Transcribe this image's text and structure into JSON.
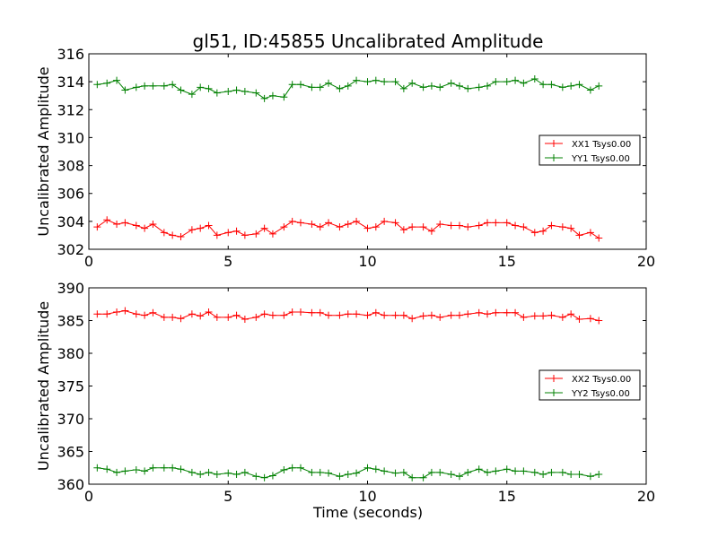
{
  "figure": {
    "title": "gl51, ID:45855 Uncalibrated Amplitude",
    "xlabel": "Time (seconds)"
  },
  "chart_data": [
    {
      "type": "line",
      "title": "gl51, ID:45855 Uncalibrated Amplitude",
      "xlabel": "",
      "ylabel": "Uncalibrated Amplitude",
      "xlim": [
        0,
        20
      ],
      "ylim": [
        302,
        316
      ],
      "xticks": [
        0,
        5,
        10,
        15,
        20
      ],
      "yticks": [
        302,
        304,
        306,
        308,
        310,
        312,
        314,
        316
      ],
      "grid": false,
      "legend": "right",
      "x": [
        0.3,
        0.65,
        1.0,
        1.3,
        1.7,
        2.0,
        2.3,
        2.7,
        3.0,
        3.3,
        3.7,
        4.0,
        4.3,
        4.6,
        5.0,
        5.3,
        5.6,
        6.0,
        6.3,
        6.6,
        7.0,
        7.3,
        7.6,
        8.0,
        8.3,
        8.6,
        9.0,
        9.3,
        9.6,
        10.0,
        10.3,
        10.6,
        11.0,
        11.3,
        11.6,
        12.0,
        12.3,
        12.6,
        13.0,
        13.3,
        13.6,
        14.0,
        14.3,
        14.6,
        15.0,
        15.3,
        15.6,
        16.0,
        16.3,
        16.6,
        17.0,
        17.3,
        17.6,
        18.0,
        18.3
      ],
      "series": [
        {
          "name": "XX1 Tsys0.00",
          "color": "#ff0000",
          "values": [
            303.6,
            304.1,
            303.8,
            303.9,
            303.7,
            303.5,
            303.8,
            303.2,
            303.0,
            302.9,
            303.4,
            303.5,
            303.7,
            303.0,
            303.2,
            303.3,
            303.0,
            303.1,
            303.5,
            303.1,
            303.6,
            304.0,
            303.9,
            303.8,
            303.6,
            303.9,
            303.6,
            303.8,
            304.0,
            303.5,
            303.6,
            304.0,
            303.9,
            303.4,
            303.6,
            303.6,
            303.3,
            303.8,
            303.7,
            303.7,
            303.6,
            303.7,
            303.9,
            303.9,
            303.9,
            303.7,
            303.6,
            303.2,
            303.3,
            303.7,
            303.6,
            303.5,
            303.0,
            303.2,
            302.8
          ]
        },
        {
          "name": "YY1 Tsys0.00",
          "color": "#008000",
          "values": [
            313.8,
            313.9,
            314.1,
            313.4,
            313.6,
            313.7,
            313.7,
            313.7,
            313.8,
            313.4,
            313.1,
            313.6,
            313.5,
            313.2,
            313.3,
            313.4,
            313.3,
            313.2,
            312.8,
            313.0,
            312.9,
            313.8,
            313.8,
            313.6,
            313.6,
            313.9,
            313.5,
            313.7,
            314.1,
            314.0,
            314.1,
            314.0,
            314.0,
            313.5,
            313.9,
            313.6,
            313.7,
            313.6,
            313.9,
            313.7,
            313.5,
            313.6,
            313.7,
            314.0,
            314.0,
            314.1,
            313.9,
            314.2,
            313.8,
            313.8,
            313.6,
            313.7,
            313.8,
            313.4,
            313.7
          ]
        }
      ]
    },
    {
      "type": "line",
      "title": "",
      "xlabel": "Time (seconds)",
      "ylabel": "Uncalibrated Amplitude",
      "xlim": [
        0,
        20
      ],
      "ylim": [
        360,
        390
      ],
      "xticks": [
        0,
        5,
        10,
        15,
        20
      ],
      "yticks": [
        360,
        365,
        370,
        375,
        380,
        385,
        390
      ],
      "grid": false,
      "legend": "right",
      "x": [
        0.3,
        0.65,
        1.0,
        1.3,
        1.7,
        2.0,
        2.3,
        2.7,
        3.0,
        3.3,
        3.7,
        4.0,
        4.3,
        4.6,
        5.0,
        5.3,
        5.6,
        6.0,
        6.3,
        6.6,
        7.0,
        7.3,
        7.6,
        8.0,
        8.3,
        8.6,
        9.0,
        9.3,
        9.6,
        10.0,
        10.3,
        10.6,
        11.0,
        11.3,
        11.6,
        12.0,
        12.3,
        12.6,
        13.0,
        13.3,
        13.6,
        14.0,
        14.3,
        14.6,
        15.0,
        15.3,
        15.6,
        16.0,
        16.3,
        16.6,
        17.0,
        17.3,
        17.6,
        18.0,
        18.3
      ],
      "series": [
        {
          "name": "XX2 Tsys0.00",
          "color": "#ff0000",
          "values": [
            386.0,
            386.0,
            386.3,
            386.5,
            386.0,
            385.8,
            386.2,
            385.5,
            385.5,
            385.3,
            386.0,
            385.7,
            386.3,
            385.5,
            385.5,
            385.8,
            385.2,
            385.5,
            386.0,
            385.8,
            385.8,
            386.3,
            386.3,
            386.2,
            386.2,
            385.8,
            385.8,
            386.0,
            386.0,
            385.8,
            386.2,
            385.8,
            385.8,
            385.8,
            385.3,
            385.7,
            385.8,
            385.5,
            385.8,
            385.8,
            386.0,
            386.2,
            386.0,
            386.2,
            386.2,
            386.2,
            385.5,
            385.7,
            385.7,
            385.8,
            385.5,
            386.0,
            385.2,
            385.3,
            385.0
          ]
        },
        {
          "name": "YY2 Tsys0.00",
          "color": "#008000",
          "values": [
            362.5,
            362.3,
            361.8,
            362.0,
            362.2,
            362.0,
            362.5,
            362.5,
            362.5,
            362.3,
            361.8,
            361.5,
            361.8,
            361.5,
            361.7,
            361.5,
            361.8,
            361.2,
            361.0,
            361.3,
            362.2,
            362.5,
            362.5,
            361.8,
            361.8,
            361.7,
            361.2,
            361.5,
            361.7,
            362.5,
            362.3,
            362.0,
            361.7,
            361.8,
            361.0,
            361.0,
            361.8,
            361.8,
            361.5,
            361.2,
            361.8,
            362.3,
            361.8,
            362.0,
            362.3,
            362.0,
            362.0,
            361.8,
            361.5,
            361.8,
            361.8,
            361.5,
            361.5,
            361.2,
            361.5
          ]
        }
      ]
    }
  ]
}
